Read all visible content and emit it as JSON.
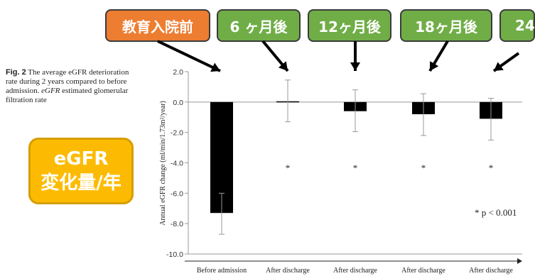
{
  "caption": {
    "fig": "Fig. 2",
    "text": "The average eGFR deterioration rate during 2 years compared to before admission.",
    "abbr": "eGFR",
    "abbr_def": "estimated glomerular filtration rate"
  },
  "badge": {
    "line1": "eGFR",
    "line2": "変化量/年",
    "color": "#fcbb02"
  },
  "timeline": [
    {
      "label": "教育入院前",
      "color": "#ed7d31"
    },
    {
      "label": "6 ヶ月後",
      "color": "#70ad47"
    },
    {
      "label": "12ヶ月後",
      "color": "#70ad47"
    },
    {
      "label": "18ヶ月後",
      "color": "#70ad47"
    },
    {
      "label": "24",
      "color": "#70ad47"
    }
  ],
  "chart_data": {
    "type": "bar",
    "ylabel": "Annual eGFR change (ml/min/1.73m²/year)",
    "ylim": [
      -10,
      2
    ],
    "yticks": [
      "2.0",
      "0.0",
      "-2.0",
      "-4.0",
      "-6.0",
      "-8.0",
      "-10.0"
    ],
    "categories": [
      "Before admission",
      "After discharge",
      "After discharge",
      "After discharge",
      "After discharge"
    ],
    "values": [
      -7.3,
      0.05,
      -0.6,
      -0.8,
      -1.1
    ],
    "error_low": [
      -8.7,
      -1.3,
      -1.95,
      -2.2,
      -2.5
    ],
    "error_high": [
      -6.0,
      1.45,
      0.8,
      0.55,
      0.25
    ],
    "significance": [
      "",
      "*",
      "*",
      "*",
      "*"
    ],
    "annotation": "* p < 0.001",
    "bar_color": "#000000"
  }
}
